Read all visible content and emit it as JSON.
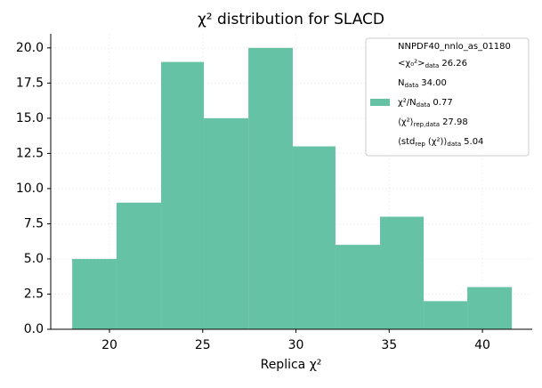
{
  "chart_data": {
    "type": "histogram",
    "title": "χ² distribution for SLACD",
    "xlabel": "Replica χ²",
    "bins": [
      18.0,
      20.38,
      22.77,
      25.06,
      27.45,
      29.83,
      32.12,
      34.51,
      36.85,
      39.19,
      41.58
    ],
    "series": [
      {
        "name": "NNPDF40_nnlo_as_01180",
        "color": "#66c2a5",
        "values": [
          5,
          9,
          19,
          15,
          20,
          13,
          6,
          8,
          2,
          3
        ]
      }
    ],
    "xlim": [
      16.85,
      42.67
    ],
    "ylim": [
      0,
      21
    ],
    "xticks": [
      20,
      25,
      30,
      35,
      40
    ],
    "yticks": [
      {
        "value": 0,
        "label": "0.0"
      },
      {
        "value": 2.5,
        "label": "2.5"
      },
      {
        "value": 5,
        "label": "5.0"
      },
      {
        "value": 7.5,
        "label": "7.5"
      },
      {
        "value": 10,
        "label": "10.0"
      },
      {
        "value": 12.5,
        "label": "12.5"
      },
      {
        "value": 15,
        "label": "15.0"
      },
      {
        "value": 17.5,
        "label": "17.5"
      },
      {
        "value": 20,
        "label": "20.0"
      }
    ],
    "grid": true,
    "legend": "upper right",
    "legend_lines": [
      [
        {
          "text": "<χ₀²>"
        },
        {
          "sub": "data"
        },
        {
          "text": "26.26"
        }
      ],
      [
        {
          "text": "N"
        },
        {
          "sub": "data"
        },
        {
          "text": "34.00"
        }
      ],
      [
        {
          "text": "χ²/N"
        },
        {
          "sub": "data"
        },
        {
          "text": "0.77"
        }
      ],
      [
        {
          "text": "⟨χ²⟩"
        },
        {
          "sub": "rep,data"
        },
        {
          "text": "27.98"
        }
      ],
      [
        {
          "text": "⟨std"
        },
        {
          "sub": "rep"
        },
        {
          "text": "(χ²)⟩"
        },
        {
          "sub": "data"
        },
        {
          "text": "5.04"
        }
      ]
    ]
  }
}
